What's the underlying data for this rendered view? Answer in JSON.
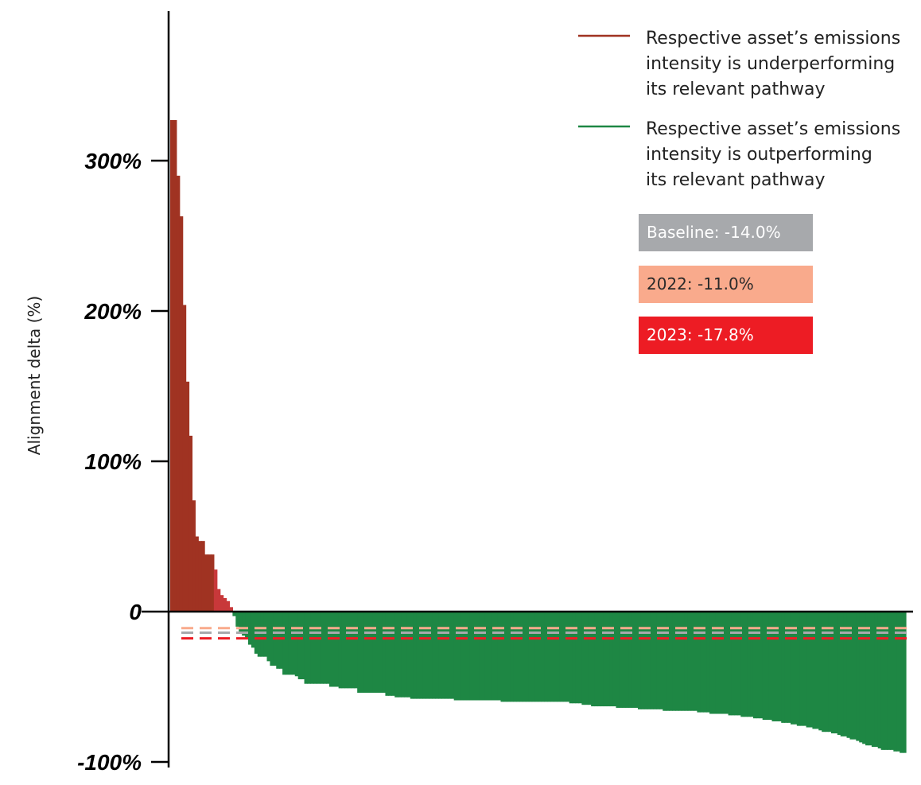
{
  "chart_data": {
    "type": "bar",
    "ylabel": "Alignment delta (%)",
    "ylim": [
      -100,
      300
    ],
    "yticks": [
      {
        "value": 300,
        "label": "300%"
      },
      {
        "value": 200,
        "label": "200%"
      },
      {
        "value": 100,
        "label": "100%"
      },
      {
        "value": 0,
        "label": "0"
      },
      {
        "value": -100,
        "label": "-100%"
      }
    ],
    "colors": {
      "underperforming": "#a03322",
      "underperforming_light": "#c8383a",
      "outperforming": "#1e8744",
      "baseline": "#a7a9ac",
      "year_2022": "#f9aa8c",
      "year_2023": "#ed1c24"
    },
    "values": [
      327,
      327,
      290,
      263,
      204,
      153,
      117,
      74,
      50,
      47,
      47,
      38,
      38,
      38,
      28,
      15,
      11,
      9,
      7,
      3,
      -3,
      -10,
      -14,
      -16,
      -18,
      -22,
      -24,
      -28,
      -30,
      -30,
      -30,
      -33,
      -36,
      -36,
      -38,
      -38,
      -42,
      -42,
      -42,
      -42,
      -43,
      -45,
      -45,
      -48,
      -48,
      -48,
      -48,
      -48,
      -48,
      -48,
      -48,
      -50,
      -50,
      -50,
      -51,
      -51,
      -51,
      -51,
      -51,
      -51,
      -54,
      -54,
      -54,
      -54,
      -54,
      -54,
      -54,
      -54,
      -54,
      -56,
      -56,
      -56,
      -57,
      -57,
      -57,
      -57,
      -57,
      -58,
      -58,
      -58,
      -58,
      -58,
      -58,
      -58,
      -58,
      -58,
      -58,
      -58,
      -58,
      -58,
      -58,
      -59,
      -59,
      -59,
      -59,
      -59,
      -59,
      -59,
      -59,
      -59,
      -59,
      -59,
      -59,
      -59,
      -59,
      -59,
      -60,
      -60,
      -60,
      -60,
      -60,
      -60,
      -60,
      -60,
      -60,
      -60,
      -60,
      -60,
      -60,
      -60,
      -60,
      -60,
      -60,
      -60,
      -60,
      -60,
      -60,
      -60,
      -61,
      -61,
      -61,
      -61,
      -62,
      -62,
      -62,
      -63,
      -63,
      -63,
      -63,
      -63,
      -63,
      -63,
      -63,
      -64,
      -64,
      -64,
      -64,
      -64,
      -64,
      -64,
      -65,
      -65,
      -65,
      -65,
      -65,
      -65,
      -65,
      -65,
      -66,
      -66,
      -66,
      -66,
      -66,
      -66,
      -66,
      -66,
      -66,
      -66,
      -66,
      -67,
      -67,
      -67,
      -67,
      -68,
      -68,
      -68,
      -68,
      -68,
      -68,
      -69,
      -69,
      -69,
      -69,
      -70,
      -70,
      -70,
      -70,
      -71,
      -71,
      -71,
      -72,
      -72,
      -72,
      -73,
      -73,
      -73,
      -74,
      -74,
      -74,
      -75,
      -75,
      -76,
      -76,
      -76,
      -77,
      -77,
      -78,
      -78,
      -79,
      -80,
      -80,
      -80,
      -81,
      -81,
      -82,
      -83,
      -83,
      -84,
      -85,
      -85,
      -86,
      -87,
      -88,
      -89,
      -89,
      -90,
      -90,
      -91,
      -92,
      -92,
      -92,
      -92,
      -93,
      -93,
      -94,
      -94
    ],
    "reference_lines": [
      {
        "key": "baseline",
        "value": -14.0
      },
      {
        "key": "year_2022",
        "value": -11.0
      },
      {
        "key": "year_2023",
        "value": -17.8
      }
    ]
  },
  "legend": {
    "underperforming": {
      "lines": [
        "Respective asset’s emissions",
        "intensity is underperforming",
        "its relevant pathway"
      ]
    },
    "outperforming": {
      "lines": [
        "Respective asset’s emissions",
        "intensity is outperforming",
        "its relevant pathway"
      ]
    }
  },
  "badges": {
    "baseline": "Baseline: -14.0%",
    "year_2022": "2022: -11.0%",
    "year_2023": "2023: -17.8%"
  }
}
